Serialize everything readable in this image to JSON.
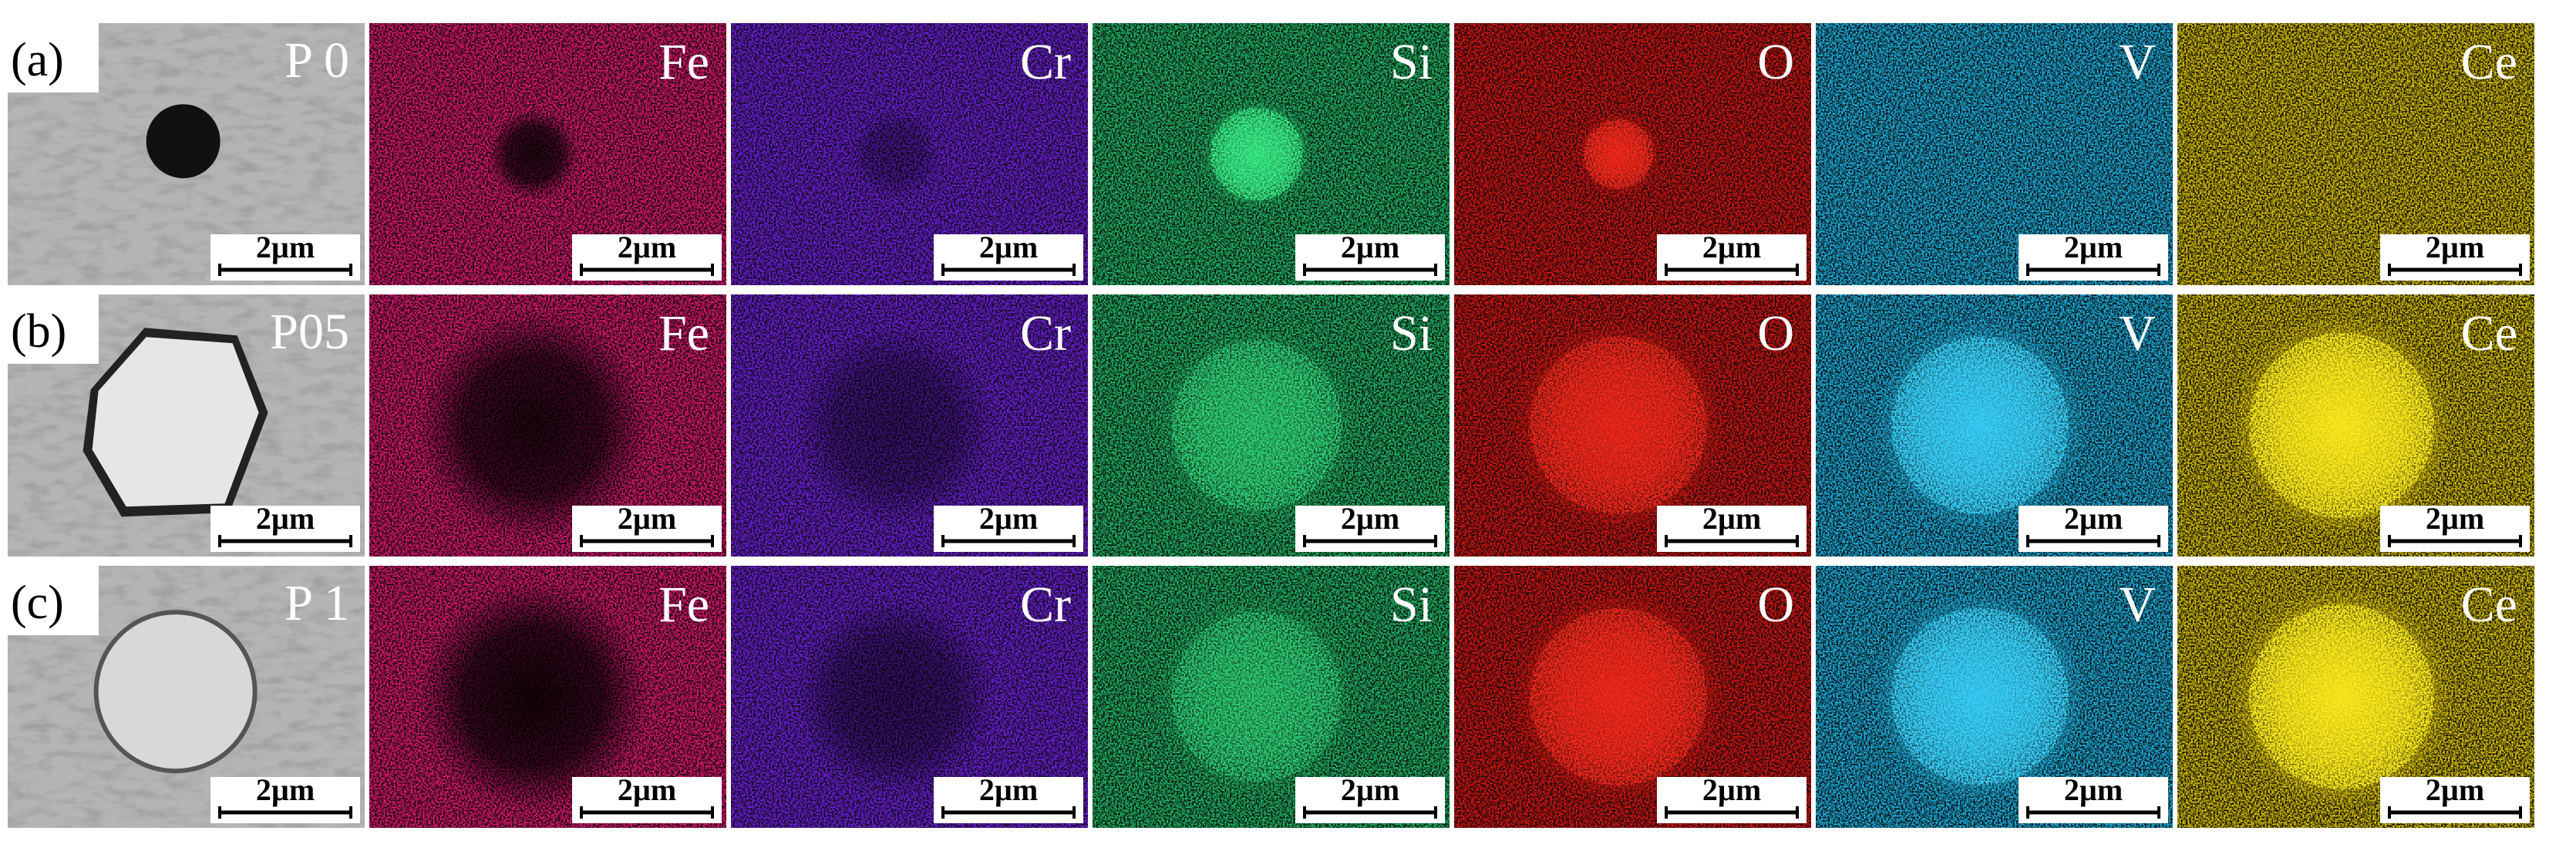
{
  "figure": {
    "columns": [
      "Fe",
      "Cr",
      "Si",
      "O",
      "V",
      "Ce"
    ],
    "scale_bar": "2µm",
    "rows": [
      {
        "label": "(a)",
        "sample": "P 0"
      },
      {
        "label": "(b)",
        "sample": "P05"
      },
      {
        "label": "(c)",
        "sample": "P 1"
      }
    ]
  }
}
